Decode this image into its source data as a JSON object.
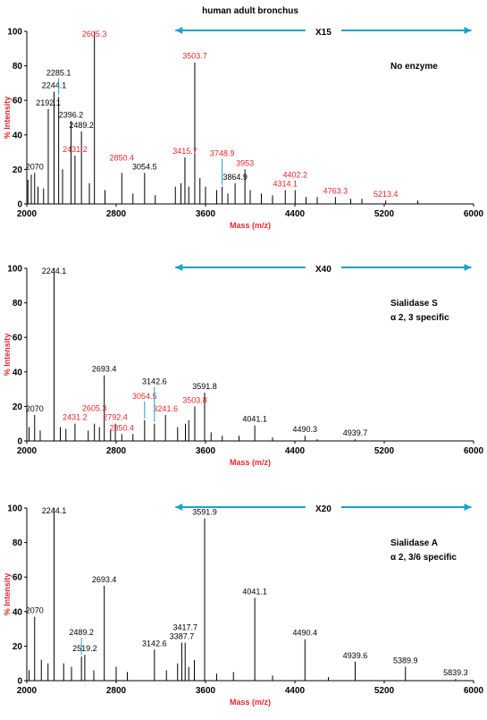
{
  "chart_data": [
    {
      "type": "stem",
      "title": "human adult bronchus",
      "xlabel": "Mass (m/z)",
      "ylabel": "% Intensity",
      "zoom_label": "X15",
      "zoom_range": [
        3330,
        5980
      ],
      "annotation": [
        "No enzyme"
      ],
      "xlim": [
        2000,
        6000
      ],
      "xticks": [
        2000,
        2800,
        3600,
        4400,
        5200,
        6000
      ],
      "ylim": [
        0,
        100
      ],
      "yticks": [
        0,
        20,
        40,
        60,
        80,
        100
      ],
      "series": [
        {
          "color": "#000000",
          "label_color": "#000000",
          "show_labels": true,
          "x": [
            2070.0,
            2192.1,
            2244.1,
            2285.1,
            2396.2,
            2489.2,
            3054.5,
            3864.9
          ],
          "values": [
            18,
            55,
            65,
            62,
            48,
            42,
            18,
            12
          ]
        },
        {
          "color": "#000000",
          "label_color": "#e8262a",
          "show_labels": true,
          "x": [
            2431.2,
            2605.3,
            2850.4,
            3415.7,
            3503.7,
            3748.9,
            3953.0,
            4314.1,
            4402.2,
            4763.3,
            5213.4
          ],
          "values": [
            28,
            100,
            18,
            27,
            82,
            10,
            20,
            8,
            8,
            4,
            2
          ]
        },
        {
          "color": "#000000",
          "show_labels": false,
          "x": [
            2010,
            2040,
            2100,
            2150,
            2320,
            2560,
            2700,
            2950,
            3150,
            3330,
            3380,
            3450,
            3550,
            3600,
            3700,
            3800,
            4000,
            4100,
            4200,
            4500,
            4600,
            4900,
            5000,
            5500
          ],
          "values": [
            14,
            17,
            10,
            9,
            20,
            12,
            8,
            6,
            5,
            10,
            12,
            10,
            15,
            10,
            8,
            6,
            8,
            6,
            5,
            4,
            4,
            3,
            3,
            2
          ]
        }
      ]
    },
    {
      "type": "stem",
      "xlabel": "Mass (m/z)",
      "ylabel": "% Intensity",
      "zoom_label": "X40",
      "zoom_range": [
        3330,
        5980
      ],
      "annotation": [
        "Sialidase S",
        "α 2, 3 specific"
      ],
      "xlim": [
        2000,
        6000
      ],
      "xticks": [
        2000,
        2800,
        3600,
        4400,
        5200,
        6000
      ],
      "ylim": [
        0,
        100
      ],
      "yticks": [
        0,
        20,
        40,
        60,
        80,
        100
      ],
      "series": [
        {
          "color": "#000000",
          "label_color": "#000000",
          "show_labels": true,
          "x": [
            2070.0,
            2244.1,
            2693.4,
            3142.6,
            3591.8,
            4041.1,
            4490.3,
            4939.7
          ],
          "values": [
            15,
            100,
            38,
            10,
            28,
            9,
            3,
            1
          ]
        },
        {
          "color": "#000000",
          "label_color": "#e8262a",
          "show_labels": true,
          "x": [
            2431.2,
            2605.3,
            2792.4,
            2850.4,
            3054.5,
            3241.6,
            3503.8
          ],
          "values": [
            10,
            10,
            10,
            4,
            12,
            15,
            20
          ]
        },
        {
          "color": "#000000",
          "show_labels": false,
          "x": [
            2020,
            2120,
            2300,
            2350,
            2550,
            2650,
            2750,
            2950,
            3350,
            3420,
            3450,
            3650,
            3750,
            3900,
            4200,
            4600
          ],
          "values": [
            8,
            6,
            8,
            7,
            6,
            8,
            6,
            4,
            8,
            10,
            12,
            5,
            3,
            3,
            2,
            1
          ]
        }
      ]
    },
    {
      "type": "stem",
      "xlabel": "Mass (m/z)",
      "ylabel": "% Intensity",
      "zoom_label": "X20",
      "zoom_range": [
        3330,
        5980
      ],
      "annotation": [
        "Sialidase A",
        "α 2, 3/6 specific"
      ],
      "xlim": [
        2000,
        6000
      ],
      "xticks": [
        2000,
        2800,
        3600,
        4400,
        5200,
        6000
      ],
      "ylim": [
        0,
        100
      ],
      "yticks": [
        0,
        20,
        40,
        60,
        80,
        100
      ],
      "series": [
        {
          "color": "#000000",
          "label_color": "#000000",
          "show_labels": true,
          "x": [
            2070.0,
            2244.1,
            2489.2,
            2519.2,
            2693.4,
            3142.6,
            3387.7,
            3417.7,
            3591.9,
            4041.1,
            4490.4,
            4939.6,
            5389.9,
            5839.3
          ],
          "values": [
            37,
            100,
            14,
            15,
            55,
            18,
            22,
            22,
            94,
            48,
            24,
            11,
            8,
            1
          ]
        },
        {
          "color": "#000000",
          "show_labels": false,
          "x": [
            2020,
            2130,
            2190,
            2330,
            2400,
            2600,
            2800,
            2900,
            3250,
            3350,
            3450,
            3500,
            3700,
            3850,
            4200,
            4700
          ],
          "values": [
            6,
            12,
            10,
            10,
            8,
            6,
            8,
            5,
            6,
            10,
            8,
            12,
            4,
            5,
            3,
            2
          ]
        }
      ]
    }
  ]
}
